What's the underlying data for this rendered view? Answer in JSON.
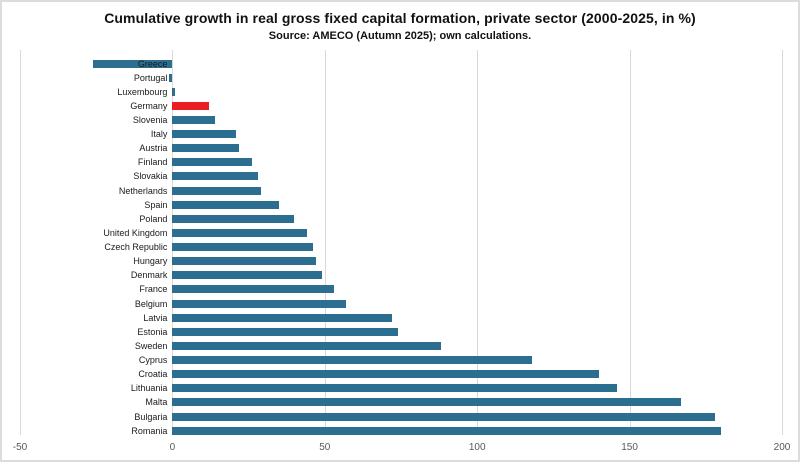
{
  "header": {
    "title": "Cumulative growth in real gross fixed capital formation, private sector (2000-2025, in %)",
    "subtitle": "Source: AMECO (Autumn 2025); own calculations."
  },
  "chart_data": {
    "type": "bar",
    "orientation": "horizontal",
    "title": "Cumulative growth in real gross fixed capital formation, private sector (2000-2025, in %)",
    "subtitle": "Source: AMECO (Autumn 2025); own calculations.",
    "categories": [
      "Greece",
      "Portugal",
      "Luxembourg",
      "Germany",
      "Slovenia",
      "Italy",
      "Austria",
      "Finland",
      "Slovakia",
      "Netherlands",
      "Spain",
      "Poland",
      "United Kingdom",
      "Czech Republic",
      "Hungary",
      "Denmark",
      "France",
      "Belgium",
      "Latvia",
      "Estonia",
      "Sweden",
      "Cyprus",
      "Croatia",
      "Lithuania",
      "Malta",
      "Bulgaria",
      "Romania"
    ],
    "values": [
      -26,
      -1,
      1,
      12,
      14,
      21,
      22,
      26,
      28,
      29,
      35,
      40,
      44,
      46,
      47,
      49,
      53,
      57,
      72,
      74,
      88,
      118,
      140,
      146,
      167,
      178,
      180
    ],
    "xlabel": "",
    "ylabel": "",
    "xlim": [
      -50,
      200
    ],
    "xticks": [
      -50,
      0,
      50,
      100,
      150,
      200
    ],
    "grid": "vertical-only",
    "legend": "none",
    "sort_order": "descending-from-bottom",
    "bar_color": "#2c6e8f",
    "highlight": {
      "category": "Germany",
      "color": "#ec1c24"
    },
    "gridline_color": "#d9d9d9",
    "tick_label_color": "#595959"
  }
}
